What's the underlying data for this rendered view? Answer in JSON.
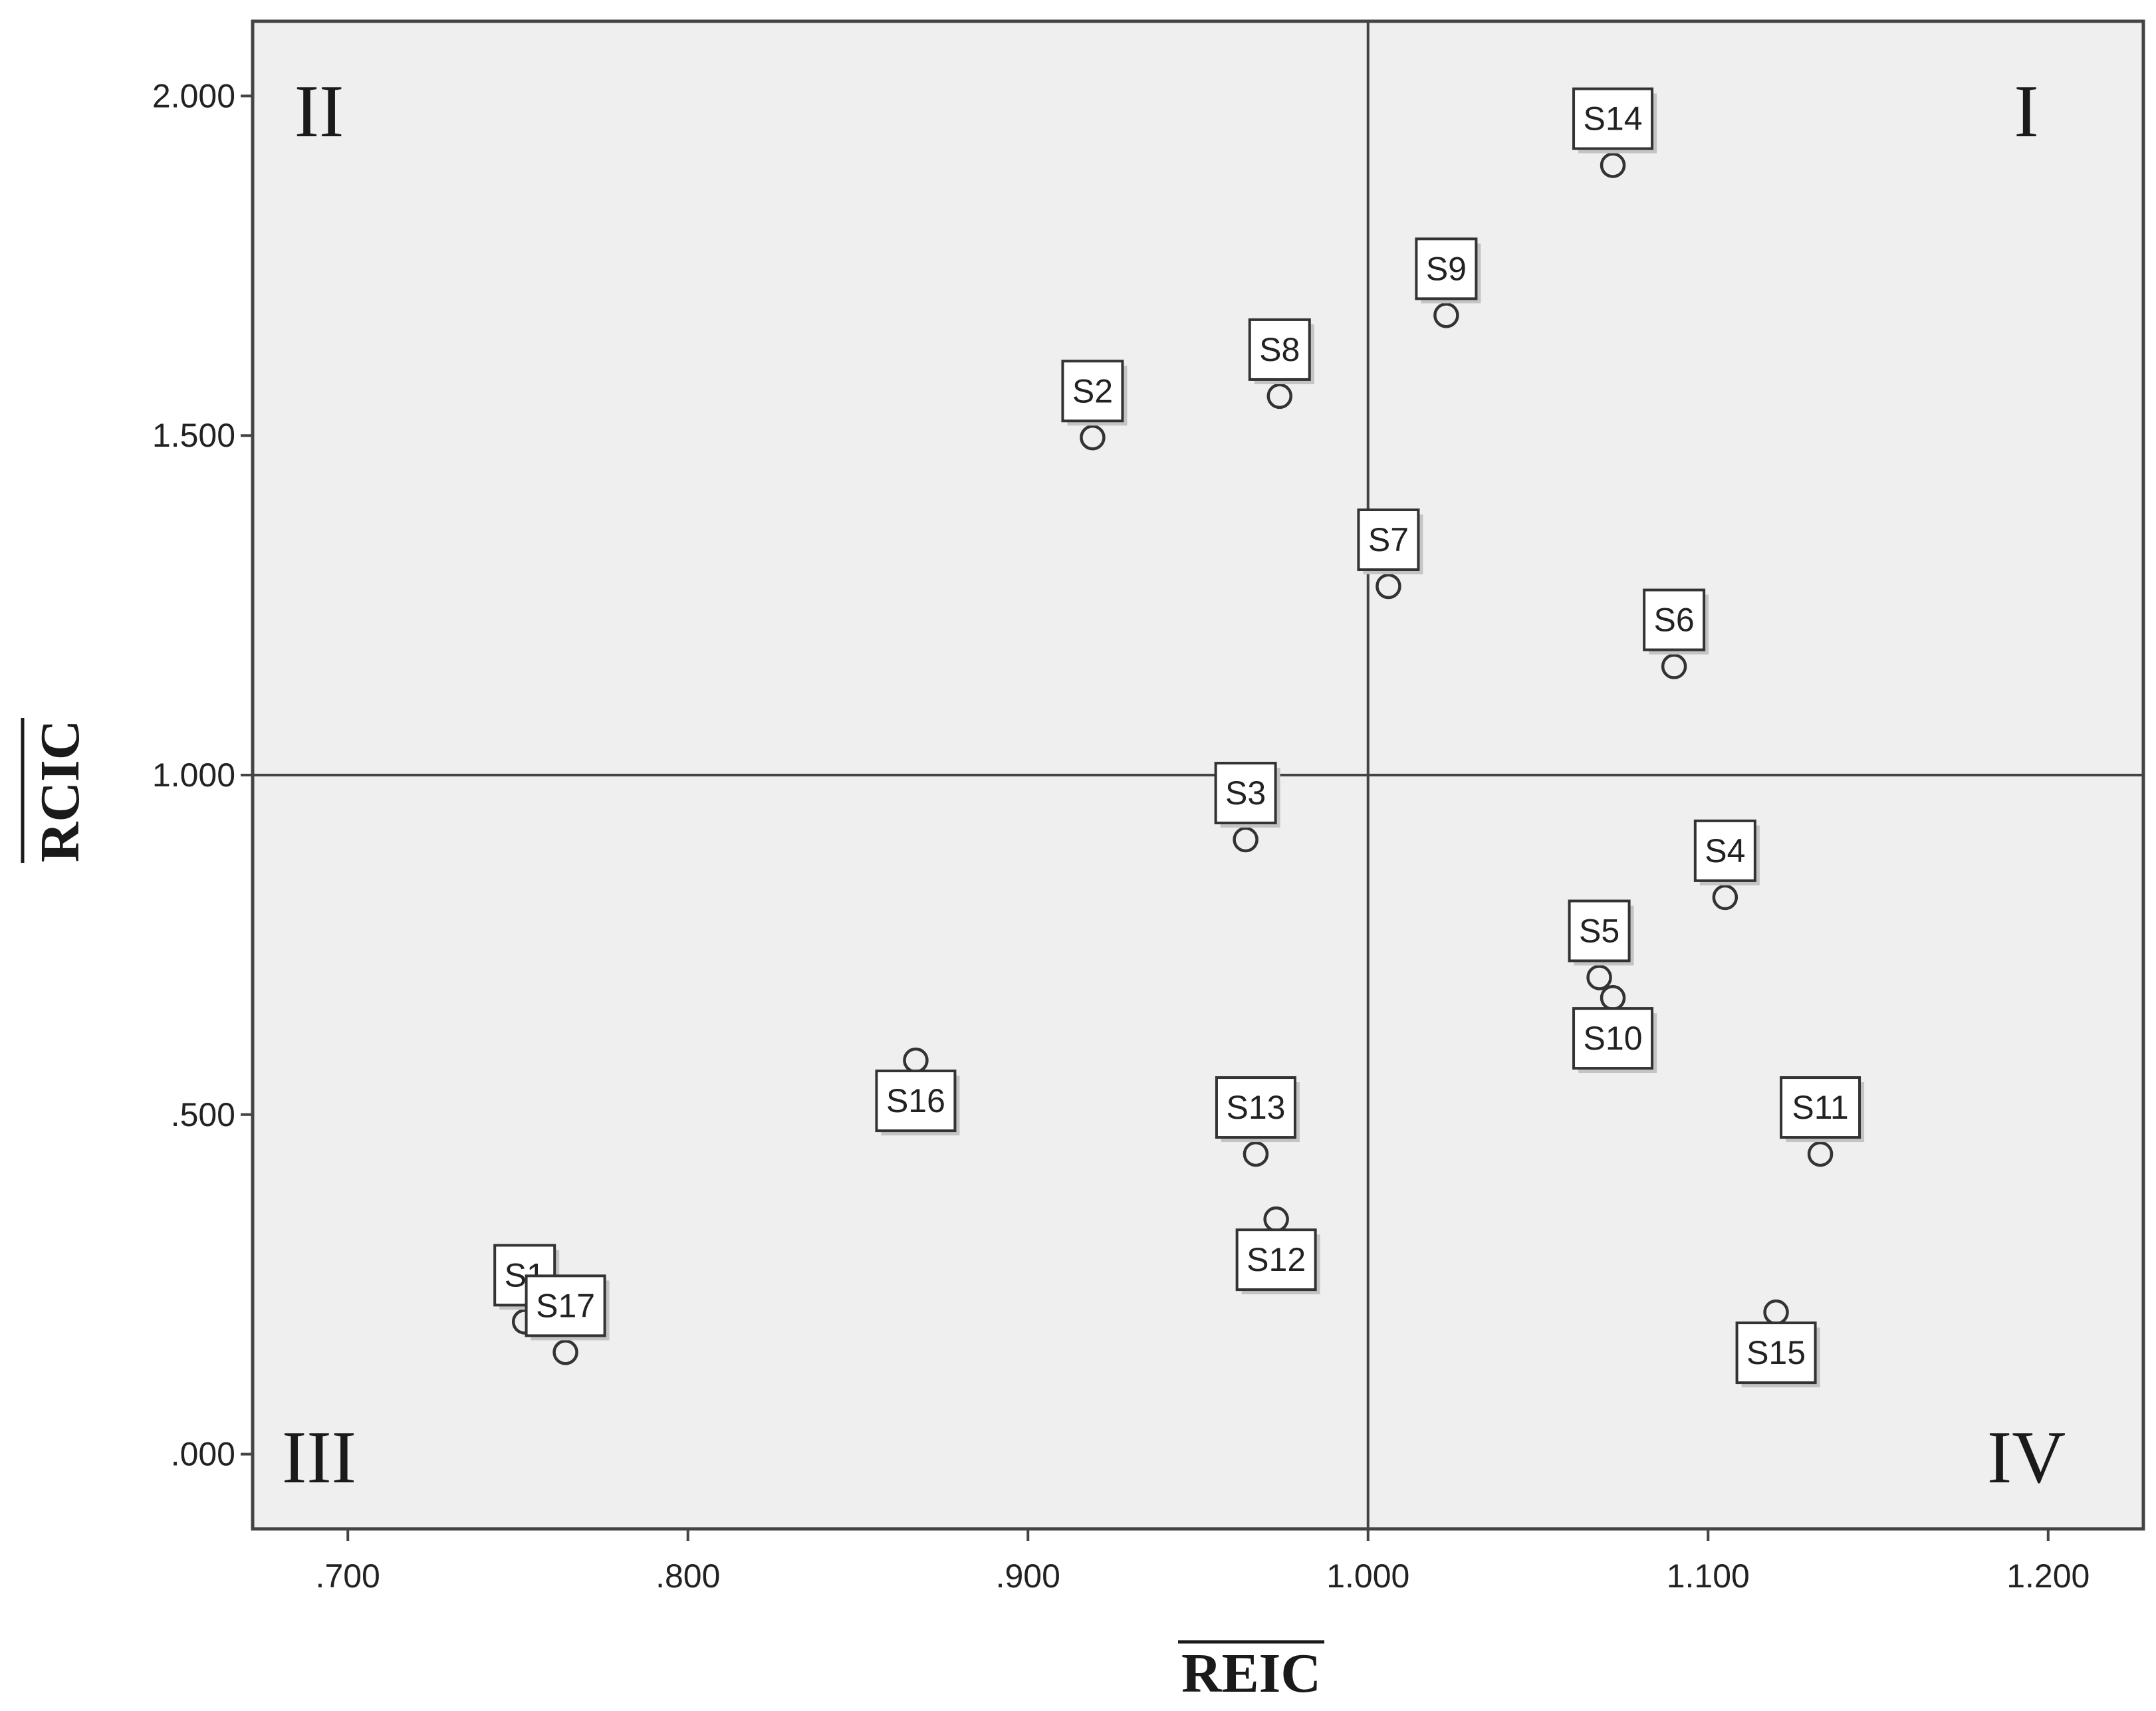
{
  "chart_data": {
    "type": "scatter",
    "xlabel": "REIC",
    "ylabel": "RCIC",
    "xlim": [
      0.672,
      1.228
    ],
    "ylim": [
      -0.11,
      2.11
    ],
    "x_ticks": [
      0.7,
      0.8,
      0.9,
      1.0,
      1.1,
      1.2
    ],
    "y_ticks": [
      0.0,
      0.5,
      1.0,
      1.5,
      2.0
    ],
    "x_tick_labels": [
      ".700",
      ".800",
      ".900",
      "1.000",
      "1.100",
      "1.200"
    ],
    "y_tick_labels": [
      ".000",
      ".500",
      "1.000",
      "1.500",
      "2.000"
    ],
    "reference_lines": {
      "x": 1.0,
      "y": 1.0
    },
    "quadrants": [
      {
        "label": "I",
        "position": "top-right"
      },
      {
        "label": "II",
        "position": "top-left"
      },
      {
        "label": "III",
        "position": "bottom-left"
      },
      {
        "label": "IV",
        "position": "bottom-right"
      }
    ],
    "points": [
      {
        "label": "S1",
        "x": 0.752,
        "y": 0.195,
        "label_side": "above"
      },
      {
        "label": "S2",
        "x": 0.919,
        "y": 1.497,
        "label_side": "above"
      },
      {
        "label": "S3",
        "x": 0.964,
        "y": 0.905,
        "label_side": "above"
      },
      {
        "label": "S4",
        "x": 1.105,
        "y": 0.82,
        "label_side": "above"
      },
      {
        "label": "S5",
        "x": 1.068,
        "y": 0.702,
        "label_side": "above"
      },
      {
        "label": "S6",
        "x": 1.09,
        "y": 1.16,
        "label_side": "above"
      },
      {
        "label": "S7",
        "x": 1.006,
        "y": 1.278,
        "label_side": "above"
      },
      {
        "label": "S8",
        "x": 0.974,
        "y": 1.558,
        "label_side": "above"
      },
      {
        "label": "S9",
        "x": 1.023,
        "y": 1.677,
        "label_side": "above"
      },
      {
        "label": "S10",
        "x": 1.072,
        "y": 0.672,
        "label_side": "below"
      },
      {
        "label": "S11",
        "x": 1.133,
        "y": 0.442,
        "label_side": "above"
      },
      {
        "label": "S12",
        "x": 0.973,
        "y": 0.346,
        "label_side": "below"
      },
      {
        "label": "S13",
        "x": 0.967,
        "y": 0.442,
        "label_side": "above"
      },
      {
        "label": "S14",
        "x": 1.072,
        "y": 1.898,
        "label_side": "above"
      },
      {
        "label": "S15",
        "x": 1.12,
        "y": 0.209,
        "label_side": "below"
      },
      {
        "label": "S16",
        "x": 0.867,
        "y": 0.58,
        "label_side": "below"
      },
      {
        "label": "S17",
        "x": 0.764,
        "y": 0.15,
        "label_side": "above"
      }
    ]
  }
}
